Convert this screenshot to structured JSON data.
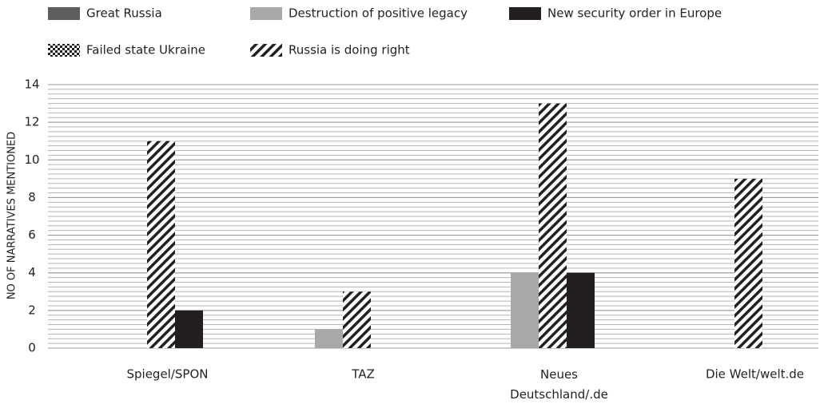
{
  "chart_data": {
    "type": "bar",
    "y_label": "NO OF NARRATIVES MENTIONED",
    "categories": [
      "Spiegel/SPON",
      "TAZ",
      "Neues Deutschland/.de",
      "Die Welt/welt.de"
    ],
    "series": [
      {
        "name": "Great Russia",
        "color": "#5e5e5e",
        "values": [
          0,
          0,
          0,
          0
        ]
      },
      {
        "name": "Destruction of positive legacy",
        "color": "#a8a8a8",
        "values": [
          0,
          1,
          4,
          0
        ]
      },
      {
        "name": "New security order in Europe",
        "color": "#231f20",
        "values": [
          2,
          0,
          4,
          0
        ]
      },
      {
        "name": "Failed state Ukraine",
        "color": "crosshatch",
        "values": [
          0,
          0,
          0,
          0
        ]
      },
      {
        "name": "Russia is doing right",
        "color": "hatch",
        "values": [
          11,
          3,
          13,
          9
        ]
      }
    ],
    "ylim": [
      0,
      14
    ],
    "yticks": [
      0,
      2,
      4,
      6,
      8,
      10,
      12,
      14
    ],
    "grid": true,
    "minor_grid_step": 0.25,
    "legend": "top"
  }
}
